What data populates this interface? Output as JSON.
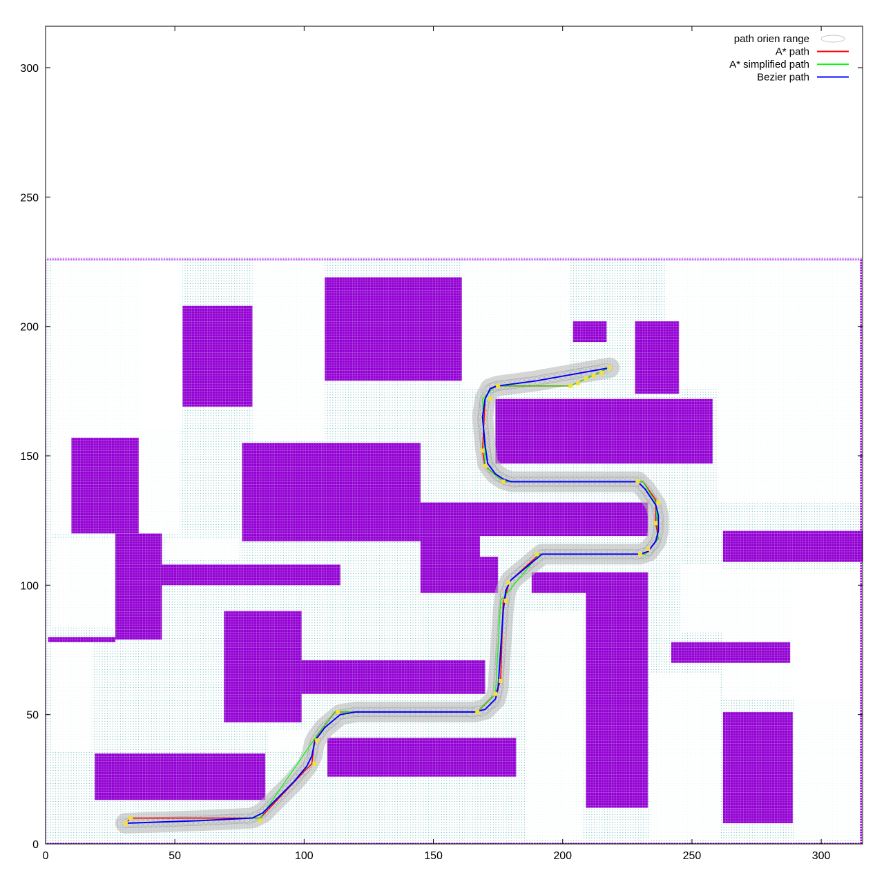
{
  "chart_data": {
    "type": "line",
    "title": "",
    "xlabel": "",
    "ylabel": "",
    "xlim": [
      0,
      316
    ],
    "ylim": [
      0,
      316
    ],
    "xticks": [
      0,
      50,
      100,
      150,
      200,
      250,
      300
    ],
    "yticks": [
      0,
      50,
      100,
      150,
      200,
      250,
      300
    ],
    "grid": false,
    "legend_position": "top-right",
    "legend": [
      {
        "label": "path orien range",
        "color": "#c8c8c8",
        "style": "ellipse"
      },
      {
        "label": "A* path",
        "color": "#ff0000",
        "style": "line"
      },
      {
        "label": "A* simplified path",
        "color": "#00ff00",
        "style": "line"
      },
      {
        "label": "Bezier path",
        "color": "#0000ff",
        "style": "line"
      }
    ],
    "colors": {
      "obstacle": "#9400d3",
      "inflation": "#008b8b",
      "orien_range": "#b4b4b4",
      "astar": "#ff0000",
      "simplified": "#00ff00",
      "bezier": "#0000ff",
      "waypoints": "#f0e040"
    },
    "map_boundary": {
      "x": [
        0,
        316
      ],
      "y": [
        0,
        226
      ]
    },
    "obstacles": [
      [
        53,
        169,
        80,
        208
      ],
      [
        108,
        179,
        161,
        219
      ],
      [
        204,
        194,
        217,
        202
      ],
      [
        228,
        174,
        245,
        202
      ],
      [
        174,
        147,
        258,
        172
      ],
      [
        10,
        120,
        36,
        157
      ],
      [
        76,
        117,
        145,
        155
      ],
      [
        145,
        119,
        233,
        132
      ],
      [
        145,
        97,
        168,
        119
      ],
      [
        168,
        97,
        175,
        111
      ],
      [
        27,
        79,
        45,
        120
      ],
      [
        45,
        100,
        114,
        108
      ],
      [
        262,
        109,
        316,
        121
      ],
      [
        188,
        97,
        233,
        105
      ],
      [
        209,
        14,
        233,
        97
      ],
      [
        242,
        70,
        288,
        78
      ],
      [
        69,
        47,
        99,
        90
      ],
      [
        99,
        58,
        170,
        71
      ],
      [
        109,
        26,
        182,
        41
      ],
      [
        19,
        17,
        85,
        35
      ],
      [
        262,
        8,
        289,
        51
      ],
      [
        1,
        78,
        27,
        80
      ]
    ],
    "series": [
      {
        "name": "A* path",
        "x": [
          31,
          33,
          60,
          83,
          100,
          103,
          104,
          105,
          112,
          167,
          174,
          176,
          177,
          178,
          179,
          180,
          191,
          232,
          237,
          236,
          236,
          236,
          231,
          177,
          170,
          169,
          170,
          172,
          174,
          185,
          203,
          218
        ],
        "y": [
          8,
          10,
          10,
          10,
          28,
          31,
          40,
          42,
          51,
          51,
          58,
          63,
          94,
          96,
          100,
          102,
          112,
          112,
          118,
          124,
          132,
          133,
          140,
          140,
          146,
          152,
          172,
          176,
          177,
          177,
          177,
          184
        ]
      },
      {
        "name": "A* simplified path",
        "x": [
          31,
          83,
          105,
          112,
          167,
          174,
          176,
          191,
          232,
          237,
          236,
          231,
          177,
          170,
          169,
          174,
          203,
          218
        ],
        "y": [
          8,
          10,
          42,
          51,
          51,
          58,
          94,
          112,
          112,
          118,
          132,
          140,
          140,
          146,
          172,
          177,
          177,
          184
        ]
      },
      {
        "name": "Bezier path",
        "x": [
          31,
          60,
          80,
          84,
          90,
          96,
          101,
          103,
          104,
          105,
          108,
          114,
          120,
          166,
          170,
          174,
          175,
          176,
          177,
          178,
          180,
          186,
          192,
          230,
          233,
          236,
          237,
          237,
          236,
          232,
          229,
          180,
          177,
          174,
          171,
          170,
          169,
          170,
          172,
          175,
          190,
          218
        ],
        "y": [
          8,
          9,
          10,
          12,
          18,
          24,
          30,
          34,
          39,
          41,
          45,
          50,
          51,
          51,
          52,
          56,
          60,
          75,
          90,
          98,
          102,
          107,
          112,
          112,
          113,
          117,
          121,
          127,
          131,
          137,
          140,
          140,
          141,
          143,
          147,
          154,
          165,
          172,
          176,
          177,
          179,
          184
        ]
      }
    ],
    "waypoints": {
      "x": [
        31,
        33,
        83,
        104,
        105,
        113,
        167,
        174,
        176,
        178,
        179,
        190,
        230,
        233,
        236,
        237,
        229,
        177,
        170,
        169,
        172,
        175,
        203,
        206,
        209,
        212,
        215,
        218
      ],
      "y": [
        8,
        10,
        9,
        31,
        40,
        51,
        51,
        58,
        63,
        94,
        101,
        112,
        112,
        114,
        124,
        132,
        140,
        140,
        146,
        152,
        172,
        177,
        177,
        178,
        180,
        181,
        182,
        184
      ]
    }
  }
}
